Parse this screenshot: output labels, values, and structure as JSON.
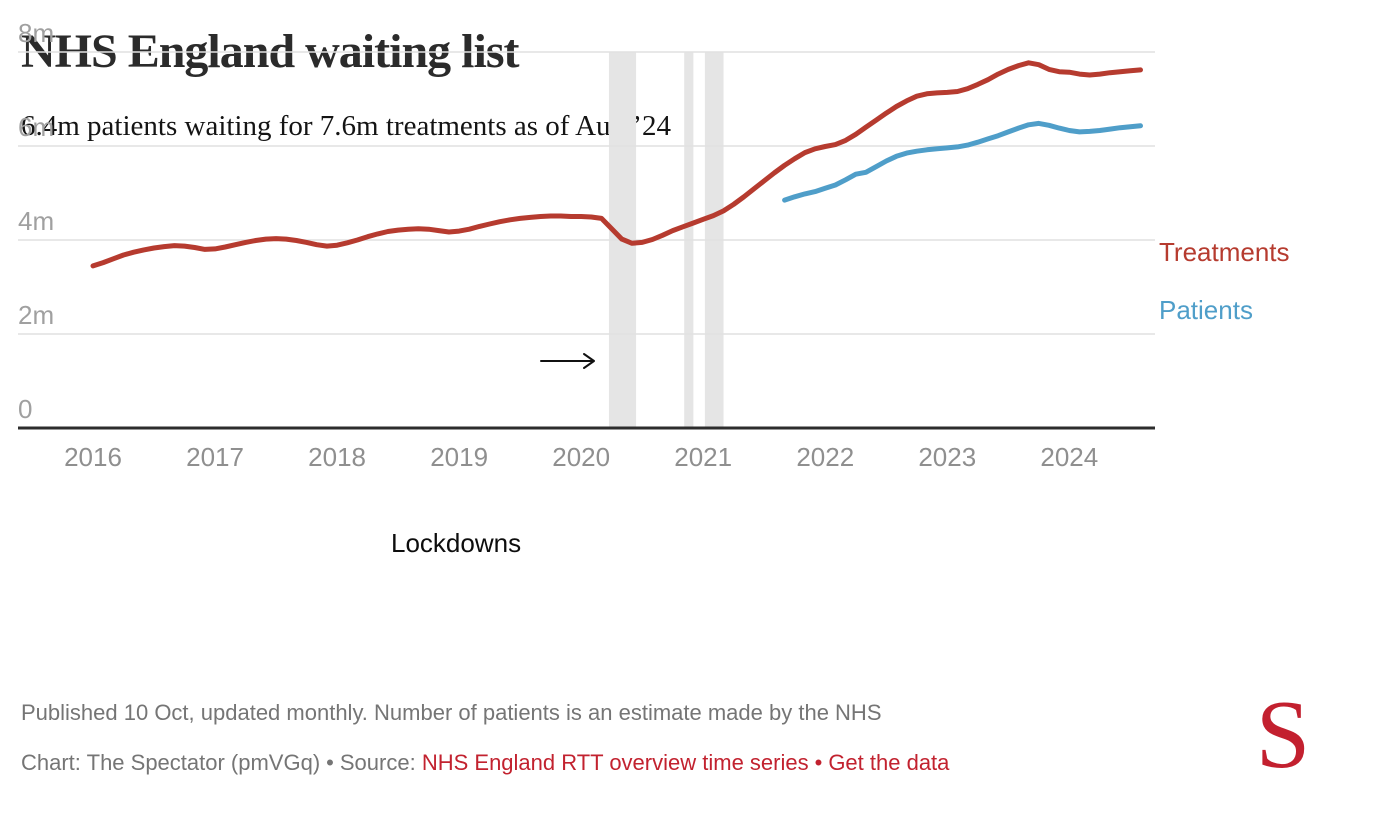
{
  "colors": {
    "treatments": "#b63b2f",
    "patients": "#4f9ec9",
    "link_red": "#c2222f",
    "logo_red": "#c3202f",
    "footer_gray": "#757575",
    "grid_gray": "#e1e1e1",
    "band_gray": "#e5e5e5",
    "axis_dark": "#2d2d2d"
  },
  "chart_data": {
    "type": "line",
    "title": "NHS England waiting list",
    "subtitle": "6.4m patients waiting for 7.6m treatments as of Aug ’24",
    "x_unit": "month",
    "x_range": [
      "2016-01",
      "2024-08"
    ],
    "ylim": [
      0,
      8
    ],
    "grid": "horizontal",
    "y_ticks": [
      {
        "label": "8m",
        "value": 8
      },
      {
        "label": "6m",
        "value": 6
      },
      {
        "label": "4m",
        "value": 4
      },
      {
        "label": "2m",
        "value": 2
      },
      {
        "label": "0",
        "value": 0
      }
    ],
    "x_ticks": [
      {
        "label": "2016",
        "month_index": 0
      },
      {
        "label": "2017",
        "month_index": 12
      },
      {
        "label": "2018",
        "month_index": 24
      },
      {
        "label": "2019",
        "month_index": 36
      },
      {
        "label": "2020",
        "month_index": 48
      },
      {
        "label": "2021",
        "month_index": 60
      },
      {
        "label": "2022",
        "month_index": 72
      },
      {
        "label": "2023",
        "month_index": 84
      },
      {
        "label": "2024",
        "month_index": 96
      }
    ],
    "series": [
      {
        "name": "Treatments",
        "color": "#b63b2f",
        "start": "2016-01",
        "unit": "millions",
        "values": [
          3.45,
          3.52,
          3.6,
          3.68,
          3.74,
          3.79,
          3.83,
          3.86,
          3.88,
          3.87,
          3.84,
          3.8,
          3.81,
          3.85,
          3.9,
          3.95,
          3.99,
          4.02,
          4.03,
          4.02,
          3.99,
          3.95,
          3.9,
          3.87,
          3.89,
          3.94,
          4.0,
          4.07,
          4.13,
          4.18,
          4.21,
          4.23,
          4.24,
          4.23,
          4.2,
          4.17,
          4.19,
          4.23,
          4.29,
          4.34,
          4.39,
          4.43,
          4.46,
          4.48,
          4.5,
          4.51,
          4.51,
          4.5,
          4.5,
          4.49,
          4.46,
          4.24,
          4.02,
          3.93,
          3.95,
          4.01,
          4.1,
          4.2,
          4.28,
          4.36,
          4.44,
          4.52,
          4.62,
          4.76,
          4.92,
          5.09,
          5.26,
          5.43,
          5.59,
          5.73,
          5.86,
          5.94,
          5.99,
          6.03,
          6.12,
          6.25,
          6.4,
          6.55,
          6.7,
          6.84,
          6.96,
          7.06,
          7.11,
          7.13,
          7.14,
          7.16,
          7.22,
          7.31,
          7.41,
          7.53,
          7.63,
          7.71,
          7.77,
          7.73,
          7.63,
          7.58,
          7.57,
          7.53,
          7.51,
          7.53,
          7.56,
          7.58,
          7.6,
          7.62
        ]
      },
      {
        "name": "Patients",
        "color": "#4f9ec9",
        "start": "2021-09",
        "unit": "millions",
        "values": [
          4.85,
          4.92,
          4.98,
          5.03,
          5.1,
          5.17,
          5.28,
          5.4,
          5.44,
          5.56,
          5.68,
          5.78,
          5.85,
          5.89,
          5.92,
          5.94,
          5.96,
          5.98,
          6.02,
          6.08,
          6.15,
          6.22,
          6.3,
          6.38,
          6.45,
          6.48,
          6.44,
          6.38,
          6.33,
          6.3,
          6.31,
          6.33,
          6.36,
          6.39,
          6.41,
          6.43
        ]
      }
    ],
    "annotations": {
      "lockdowns_label": "Lockdowns",
      "lockdown_bands": [
        {
          "start": "2020-03-23",
          "end": "2020-06-13"
        },
        {
          "start": "2020-11-05",
          "end": "2020-12-02"
        },
        {
          "start": "2021-01-06",
          "end": "2021-03-01"
        }
      ]
    },
    "legend_position": "right-of-line-ends"
  },
  "footer": {
    "note": "Published 10 Oct, updated monthly. Number of patients is an estimate made by the NHS",
    "credit_prefix": "Chart: The Spectator (pmVGq)",
    "separator": "•",
    "source_label": "Source:",
    "source_link": "NHS England RTT overview time series",
    "data_link": "Get the data"
  },
  "branding": {
    "logo_letter": "S"
  }
}
